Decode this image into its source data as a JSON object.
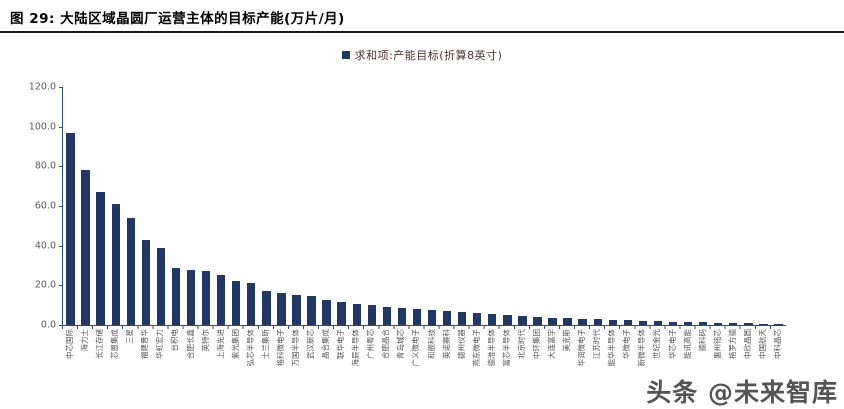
{
  "figure": {
    "title": "图  29:  大陆区域晶圆厂运营主体的目标产能(万片/月)",
    "legend_label": "求和项:产能目标(折算8英寸)",
    "watermark": "头条 @未来智库",
    "accent_color": "#1f3864"
  },
  "chart_data": {
    "type": "bar",
    "title": "大陆区域晶圆厂运营主体的目标产能(万片/月)",
    "legend": [
      "求和项:产能目标(折算8英寸)"
    ],
    "legend_position": "top-center",
    "grid": false,
    "xlabel": "",
    "ylabel": "",
    "ylim": [
      0,
      120
    ],
    "ytick_labels": [
      "120.0",
      "100.0",
      "80.0",
      "60.0",
      "40.0",
      "20.0",
      "0.0"
    ],
    "bar_color": "#1f3864",
    "categories": [
      "中芯国际",
      "海力士",
      "长江存储",
      "芯恩集成",
      "三星",
      "福建晋华",
      "华虹宏力",
      "台积电",
      "合肥长鑫",
      "英特尔",
      "上海先进",
      "紫光集团",
      "弘芯半导体",
      "士兰集昕",
      "格科微电子",
      "万国半导体",
      "武汉新芯",
      "晶合集成",
      "联华电子",
      "海辰半导体",
      "广州粤芯",
      "合肥晶合",
      "青岛城芯",
      "广义微电子",
      "和舰科技",
      "英诺赛科",
      "德州仪器",
      "燕东微电子",
      "德淮半导体",
      "富芯半导体",
      "北京时代",
      "中环集团",
      "大连富宇",
      "美克斯",
      "华润微电子",
      "江苏时代",
      "能华半导体",
      "华微电子",
      "新微半导体",
      "世纪金光",
      "华芯电子",
      "能讯高能",
      "德科码",
      "惠州铭芯",
      "格罗方德",
      "中欣晶圆",
      "中国航天",
      "中科晶芯"
    ],
    "values": [
      97,
      78,
      67,
      61,
      54,
      43,
      39,
      29,
      28,
      27,
      25,
      22,
      21,
      17,
      16,
      15,
      14.5,
      12.5,
      11.5,
      10.5,
      10,
      9,
      8.5,
      8,
      7.5,
      7,
      6.5,
      6,
      5.5,
      5,
      4.5,
      4,
      3.7,
      3.4,
      3.1,
      2.8,
      2.5,
      2.3,
      2.1,
      1.9,
      1.7,
      1.5,
      1.3,
      1.1,
      0.9,
      0.8,
      0.7,
      0.6
    ]
  }
}
